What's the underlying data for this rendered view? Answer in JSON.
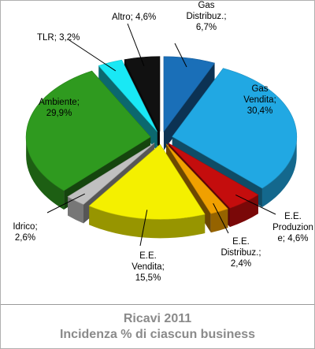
{
  "caption": {
    "line1": "Ricavi 2011",
    "line2": "Incidenza % di ciascun business"
  },
  "chart_data": {
    "type": "pie",
    "variant": "exploded-3d",
    "unit": "%",
    "slices": [
      {
        "label": "Gas Distribuz.; 6,7%",
        "lines": [
          "Gas",
          "Distribuz.;",
          "6,7%"
        ],
        "value": 6.7,
        "color": "#1a6fb8"
      },
      {
        "label": "Gas Vendita; 30,4%",
        "lines": [
          "Gas",
          "Vendita;",
          "30,4%"
        ],
        "value": 30.4,
        "color": "#21a8e3"
      },
      {
        "label": "E.E. Produzione; 4,6%",
        "lines": [
          "E.E.",
          "Produzion",
          "e; 4,6%"
        ],
        "value": 4.6,
        "color": "#c40d0d"
      },
      {
        "label": "E.E. Distribuz.; 2,4%",
        "lines": [
          "E.E.",
          "Distribuz.;",
          "2,4%"
        ],
        "value": 2.4,
        "color": "#f0a000"
      },
      {
        "label": "E.E. Vendita; 15,5%",
        "lines": [
          "E.E.",
          "Vendita;",
          "15,5%"
        ],
        "value": 15.5,
        "color": "#f4f000"
      },
      {
        "label": "Idrico; 2,6%",
        "lines": [
          "Idrico;",
          "2,6%"
        ],
        "value": 2.6,
        "color": "#c0c0c0"
      },
      {
        "label": "Ambiente; 29,9%",
        "lines": [
          "Ambiente;",
          "29,9%"
        ],
        "value": 29.9,
        "color": "#2f9a1f"
      },
      {
        "label": "TLR; 3,2%",
        "lines": [
          "TLR; 3,2%"
        ],
        "value": 3.2,
        "color": "#19e8f5"
      },
      {
        "label": "Altro; 4,6%",
        "lines": [
          "Altro; 4,6%"
        ],
        "value": 4.6,
        "color": "#111111"
      }
    ]
  }
}
